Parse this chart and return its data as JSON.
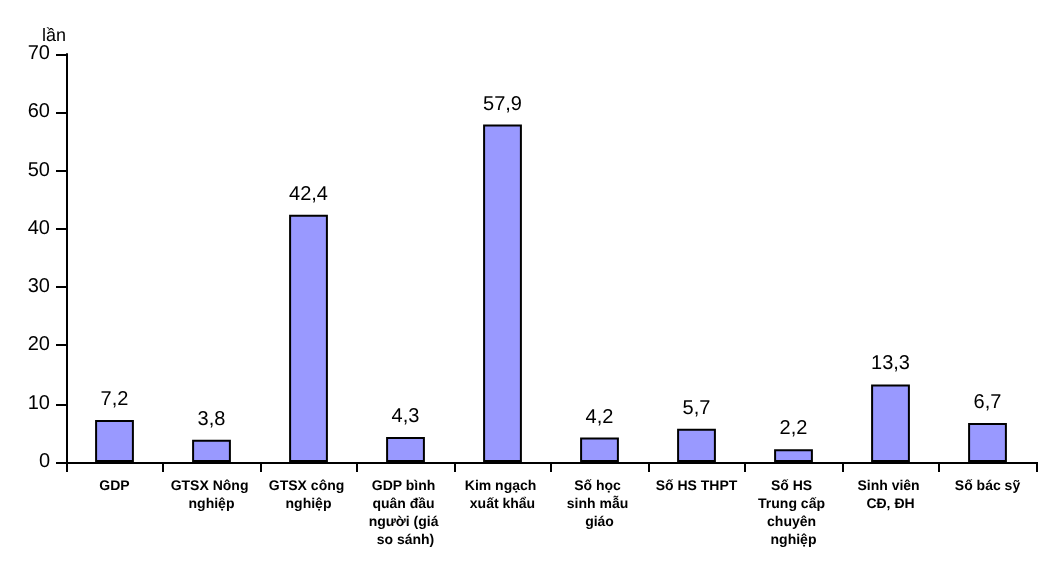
{
  "chart_data": {
    "type": "bar",
    "ylabel": "lần",
    "categories": [
      "GDP",
      "GTSX Nông nghiệp",
      "GTSX công nghiệp",
      "GDP bình quân đầu người (giá so sánh)",
      "Kim ngạch xuất khẩu",
      "Số học sinh mẫu giáo",
      "Số HS THPT",
      "Số HS Trung cấp chuyên nghiệp",
      "Sinh viên CĐ, ĐH",
      "Số bác sỹ"
    ],
    "values": [
      7.2,
      3.8,
      42.4,
      4.3,
      57.9,
      4.2,
      5.7,
      2.2,
      13.3,
      6.7
    ],
    "value_labels": [
      "7,2",
      "3,8",
      "42,4",
      "4,3",
      "57,9",
      "4,2",
      "5,7",
      "2,2",
      "13,3",
      "6,7"
    ],
    "color": "#9999ff",
    "ylim": [
      0,
      70
    ],
    "yticks": [
      0,
      10,
      20,
      30,
      40,
      50,
      60,
      70
    ],
    "grid": false
  }
}
